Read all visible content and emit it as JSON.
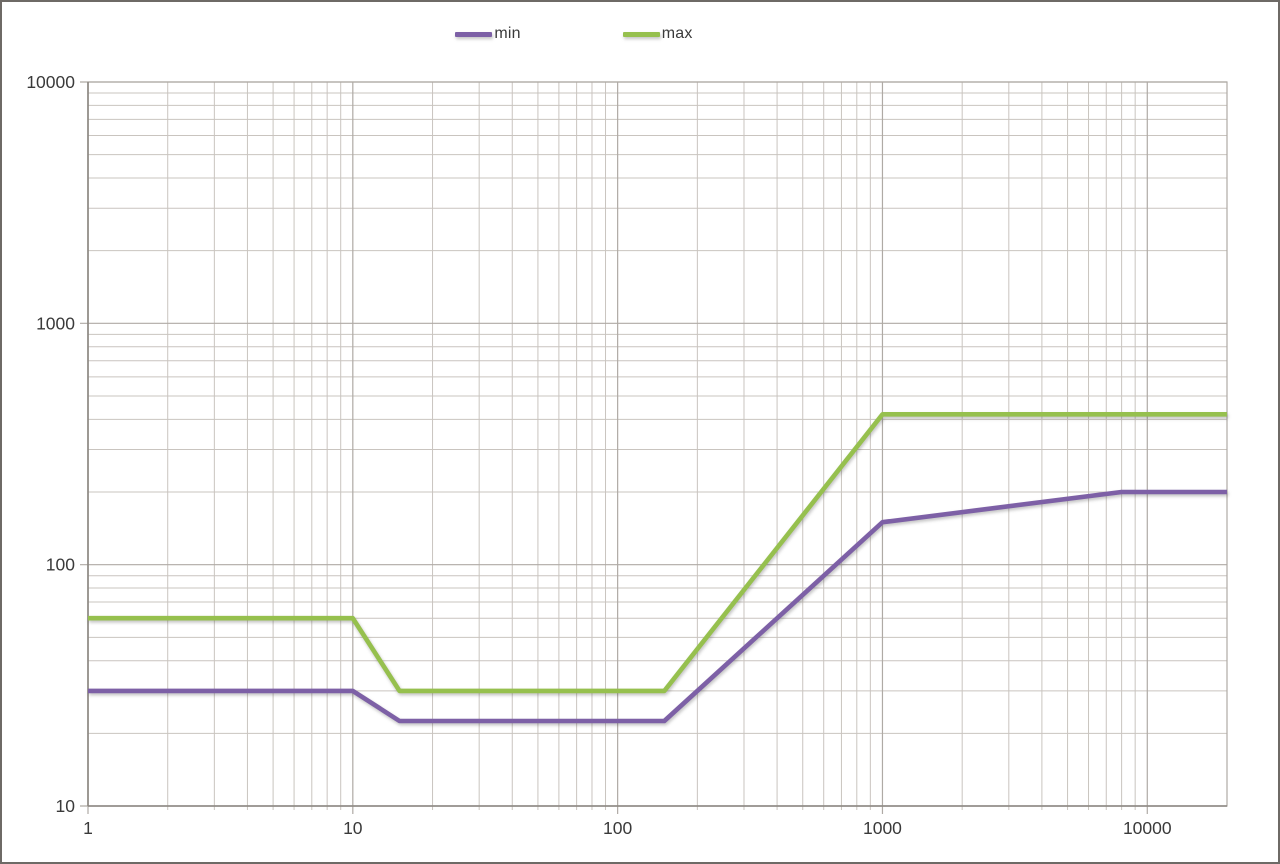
{
  "chart_data": {
    "type": "line",
    "title": "",
    "xlabel": "",
    "ylabel": "",
    "x_scale": "log",
    "y_scale": "log",
    "xlim": [
      1,
      20000
    ],
    "ylim": [
      10,
      10000
    ],
    "x_ticks": [
      "1",
      "10",
      "100",
      "1000",
      "10000"
    ],
    "x_tick_values": [
      1,
      10,
      100,
      1000,
      10000
    ],
    "y_ticks": [
      "10",
      "100",
      "1000",
      "10000"
    ],
    "y_tick_values": [
      10,
      100,
      1000,
      10000
    ],
    "grid": "log major + minor gridlines on both axes",
    "legend_position": "top-center",
    "series": [
      {
        "name": "min",
        "color": "#7d60a6",
        "points": [
          [
            1,
            30
          ],
          [
            10,
            30
          ],
          [
            15,
            22.5
          ],
          [
            150,
            22.5
          ],
          [
            1000,
            150
          ],
          [
            8000,
            200
          ],
          [
            20000,
            200
          ]
        ]
      },
      {
        "name": "max",
        "color": "#96c04e",
        "points": [
          [
            1,
            60
          ],
          [
            10,
            60
          ],
          [
            15,
            30
          ],
          [
            150,
            30
          ],
          [
            1000,
            420
          ],
          [
            20000,
            420
          ]
        ]
      }
    ]
  },
  "colors": {
    "grid_minor": "#c9c4bf",
    "grid_major": "#afaaa5",
    "axis": "#8c8781",
    "text": "#3a3a3a",
    "background": "#ffffff",
    "frame": "#6e6a66"
  }
}
